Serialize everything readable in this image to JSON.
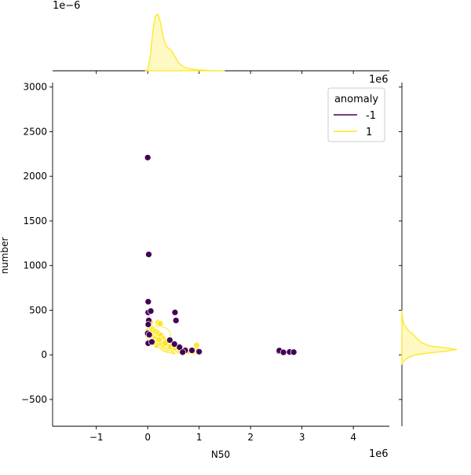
{
  "chart_data": {
    "type": "scatter",
    "title": "",
    "xlabel": "N50",
    "ylabel": "number",
    "x_scale_label": "1e6",
    "y_marg_scale_label": "1e6",
    "x_marg_scale_label": "1e−6",
    "xlim": [
      -1.85,
      4.7
    ],
    "ylim": [
      -800,
      3050
    ],
    "x_ticks": [
      -1,
      0,
      1,
      2,
      3,
      4
    ],
    "x_tick_labels": [
      "−1",
      "0",
      "1",
      "2",
      "3",
      "4"
    ],
    "y_ticks": [
      -500,
      0,
      500,
      1000,
      1500,
      2000,
      2500,
      3000
    ],
    "y_tick_labels": [
      "−500",
      "0",
      "500",
      "1000",
      "1500",
      "2000",
      "2500",
      "3000"
    ],
    "legend": {
      "title": "anomaly",
      "position": "upper-right",
      "entries": [
        {
          "label": "-1",
          "color": "#440154"
        },
        {
          "label": "1",
          "color": "#fde725"
        }
      ]
    },
    "series": [
      {
        "name": "-1",
        "color": "#440154",
        "points": [
          [
            0.0,
            2210
          ],
          [
            0.02,
            1125
          ],
          [
            0.01,
            595
          ],
          [
            0.01,
            475
          ],
          [
            0.06,
            490
          ],
          [
            0.02,
            385
          ],
          [
            0.01,
            340
          ],
          [
            0.0,
            240
          ],
          [
            0.03,
            225
          ],
          [
            0.01,
            130
          ],
          [
            0.08,
            145
          ],
          [
            0.53,
            475
          ],
          [
            0.55,
            385
          ],
          [
            0.43,
            165
          ],
          [
            0.52,
            120
          ],
          [
            0.62,
            85
          ],
          [
            0.73,
            50
          ],
          [
            0.68,
            30
          ],
          [
            0.86,
            50
          ],
          [
            0.99,
            40
          ],
          [
            1.0,
            35
          ],
          [
            2.55,
            40
          ],
          [
            2.56,
            48
          ],
          [
            2.64,
            28
          ],
          [
            2.76,
            32
          ],
          [
            2.84,
            30
          ]
        ]
      },
      {
        "name": "1",
        "color": "#fde725",
        "points": [
          [
            0.01,
            270
          ],
          [
            0.03,
            240
          ],
          [
            0.05,
            320
          ],
          [
            0.07,
            300
          ],
          [
            0.1,
            230
          ],
          [
            0.12,
            200
          ],
          [
            0.15,
            180
          ],
          [
            0.18,
            150
          ],
          [
            0.2,
            120
          ],
          [
            0.22,
            100
          ],
          [
            0.25,
            90
          ],
          [
            0.28,
            80
          ],
          [
            0.3,
            70
          ],
          [
            0.33,
            60
          ],
          [
            0.36,
            55
          ],
          [
            0.4,
            50
          ],
          [
            0.45,
            45
          ],
          [
            0.5,
            40
          ],
          [
            0.55,
            60
          ],
          [
            0.6,
            50
          ],
          [
            0.65,
            45
          ],
          [
            0.7,
            40
          ],
          [
            0.75,
            55
          ],
          [
            0.8,
            50
          ],
          [
            0.85,
            40
          ],
          [
            0.9,
            35
          ],
          [
            0.95,
            105
          ],
          [
            1.0,
            40
          ],
          [
            0.05,
            370
          ],
          [
            0.2,
            360
          ],
          [
            0.24,
            350
          ],
          [
            0.1,
            280
          ],
          [
            0.15,
            260
          ],
          [
            0.2,
            240
          ],
          [
            0.25,
            220
          ],
          [
            0.3,
            180
          ],
          [
            0.35,
            150
          ],
          [
            0.4,
            120
          ],
          [
            0.45,
            100
          ],
          [
            0.5,
            110
          ],
          [
            0.17,
            110
          ],
          [
            0.27,
            125
          ],
          [
            0.32,
            100
          ],
          [
            0.38,
            85
          ],
          [
            0.42,
            75
          ],
          [
            0.48,
            65
          ],
          [
            0.58,
            55
          ],
          [
            0.63,
            40
          ],
          [
            0.78,
            40
          ],
          [
            0.92,
            50
          ],
          [
            0.12,
            140
          ],
          [
            0.22,
            170
          ],
          [
            0.34,
            130
          ],
          [
            0.44,
            90
          ],
          [
            0.53,
            80
          ]
        ]
      }
    ],
    "marginal_x_density": [
      [
        -0.05,
        0
      ],
      [
        0.0,
        0.02
      ],
      [
        0.05,
        0.25
      ],
      [
        0.1,
        0.7
      ],
      [
        0.15,
        0.97
      ],
      [
        0.2,
        1.0
      ],
      [
        0.25,
        0.85
      ],
      [
        0.3,
        0.6
      ],
      [
        0.35,
        0.45
      ],
      [
        0.4,
        0.4
      ],
      [
        0.45,
        0.37
      ],
      [
        0.5,
        0.3
      ],
      [
        0.55,
        0.22
      ],
      [
        0.6,
        0.14
      ],
      [
        0.7,
        0.07
      ],
      [
        0.8,
        0.04
      ],
      [
        0.9,
        0.025
      ],
      [
        1.0,
        0.015
      ],
      [
        1.2,
        0.005
      ],
      [
        1.5,
        0
      ]
    ],
    "marginal_y_density": [
      [
        -100,
        0
      ],
      [
        -60,
        0.05
      ],
      [
        -30,
        0.12
      ],
      [
        0,
        0.25
      ],
      [
        20,
        0.48
      ],
      [
        40,
        0.8
      ],
      [
        60,
        1.0
      ],
      [
        80,
        0.78
      ],
      [
        100,
        0.5
      ],
      [
        140,
        0.35
      ],
      [
        180,
        0.28
      ],
      [
        220,
        0.22
      ],
      [
        260,
        0.14
      ],
      [
        300,
        0.08
      ],
      [
        350,
        0.03
      ],
      [
        420,
        0.01
      ],
      [
        500,
        0
      ]
    ]
  }
}
